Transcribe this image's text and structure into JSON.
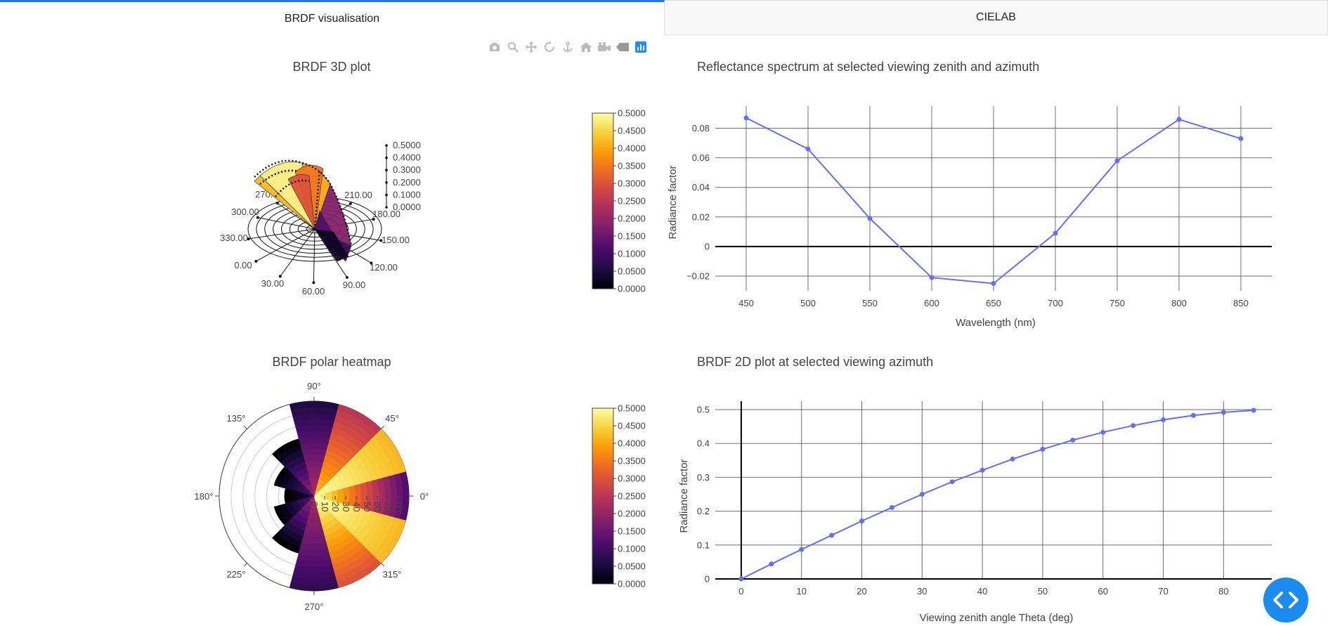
{
  "tabs": [
    {
      "label": "BRDF visualisation",
      "active": true
    },
    {
      "label": "CIELAB",
      "active": false
    }
  ],
  "modebar_icons": [
    "camera-icon",
    "zoom-icon",
    "pan-icon",
    "orbit-rotate-icon",
    "turntable-icon",
    "home-icon",
    "camera-reset-icon",
    "hover-tag-icon",
    "plotly-logo-icon"
  ],
  "colorscale": [
    "#000004",
    "#1b0c41",
    "#4a0c6b",
    "#781c6d",
    "#a52c60",
    "#cf4446",
    "#ed6925",
    "#fb9b06",
    "#f7d13d",
    "#fcffa4"
  ],
  "chart_data": [
    {
      "id": "brdf3d",
      "type": "surface3d",
      "title": "BRDF 3D plot",
      "z_ticks": [
        "0.5000",
        "0.4000",
        "0.3000",
        "0.2000",
        "0.1000",
        "0.0000"
      ],
      "azimuth_labels": [
        "0.00",
        "30.00",
        "60.00",
        "90.00",
        "120.00",
        "150.00",
        "180.00",
        "210.00",
        "270.00",
        "300.00",
        "330.00"
      ],
      "colorbar": {
        "min": 0,
        "max": 0.5,
        "ticks": [
          "0.5000",
          "0.4500",
          "0.4000",
          "0.3500",
          "0.3000",
          "0.2500",
          "0.2000",
          "0.1500",
          "0.1000",
          "0.0500",
          "0.0000"
        ]
      }
    },
    {
      "id": "spectrum",
      "type": "line",
      "title": "Reflectance spectrum at selected viewing zenith and azimuth",
      "xlabel": "Wavelength (nm)",
      "ylabel": "Radiance factor",
      "x": [
        450,
        500,
        550,
        600,
        650,
        700,
        750,
        800,
        850
      ],
      "y": [
        0.087,
        0.066,
        0.019,
        -0.021,
        -0.025,
        0.009,
        0.058,
        0.086,
        0.073
      ],
      "xticks": [
        "450",
        "500",
        "550",
        "600",
        "650",
        "700",
        "750",
        "800",
        "850"
      ],
      "yticks": [
        "0.08",
        "0.06",
        "0.04",
        "0.02",
        "0",
        "−0.02"
      ],
      "xlim": [
        425,
        875
      ],
      "ylim": [
        -0.03,
        0.095
      ],
      "color": "#636efa"
    },
    {
      "id": "polar",
      "type": "heatmap",
      "title": "BRDF polar heatmap",
      "angle_labels": [
        "0°",
        "45°",
        "90°",
        "135°",
        "180°",
        "225°",
        "270°",
        "315°"
      ],
      "radial_ticks": [
        "0",
        "10",
        "20",
        "30",
        "40",
        "50",
        "60",
        "70",
        "80"
      ],
      "sectors": [
        {
          "center_deg": 0,
          "extent": 1.0,
          "start": 0.5,
          "end": 0.12
        },
        {
          "center_deg": 30,
          "extent": 1.0,
          "start": 0.5,
          "end": 0.42
        },
        {
          "center_deg": 60,
          "extent": 1.0,
          "start": 0.42,
          "end": 0.25
        },
        {
          "center_deg": 90,
          "extent": 1.0,
          "start": 0.22,
          "end": 0.06
        },
        {
          "center_deg": 120,
          "extent": 0.62,
          "start": 0.2,
          "end": 0.0
        },
        {
          "center_deg": 150,
          "extent": 0.42,
          "start": 0.12,
          "end": 0.0
        },
        {
          "center_deg": 180,
          "extent": 0.3,
          "start": 0.05,
          "end": 0.0
        },
        {
          "center_deg": 210,
          "extent": 0.42,
          "start": 0.12,
          "end": 0.0
        },
        {
          "center_deg": 240,
          "extent": 0.62,
          "start": 0.2,
          "end": 0.0
        },
        {
          "center_deg": 270,
          "extent": 1.0,
          "start": 0.22,
          "end": 0.08
        },
        {
          "center_deg": 300,
          "extent": 1.0,
          "start": 0.5,
          "end": 0.3
        },
        {
          "center_deg": 330,
          "extent": 1.0,
          "start": 0.5,
          "end": 0.42
        }
      ],
      "colorbar": {
        "min": 0,
        "max": 0.5,
        "ticks": [
          "0.5000",
          "0.4500",
          "0.4000",
          "0.3500",
          "0.3000",
          "0.2500",
          "0.2000",
          "0.1500",
          "0.1000",
          "0.0500",
          "0.0000"
        ]
      }
    },
    {
      "id": "brdf2d",
      "type": "line",
      "title": "BRDF 2D plot at selected viewing azimuth",
      "xlabel": "Viewing zenith angle Theta (deg)",
      "ylabel": "Radiance factor",
      "x": [
        0,
        5,
        10,
        15,
        20,
        25,
        30,
        35,
        40,
        45,
        50,
        55,
        60,
        65,
        70,
        75,
        80,
        85
      ],
      "y": [
        0,
        0.044,
        0.087,
        0.129,
        0.171,
        0.211,
        0.25,
        0.287,
        0.321,
        0.354,
        0.383,
        0.41,
        0.433,
        0.453,
        0.47,
        0.483,
        0.492,
        0.498
      ],
      "xticks": [
        "0",
        "10",
        "20",
        "30",
        "40",
        "50",
        "60",
        "70",
        "80"
      ],
      "yticks": [
        "0.5",
        "0.4",
        "0.3",
        "0.2",
        "0.1",
        "0"
      ],
      "xlim": [
        -4.3,
        88
      ],
      "ylim": [
        0,
        0.525
      ],
      "color": "#636efa"
    }
  ]
}
